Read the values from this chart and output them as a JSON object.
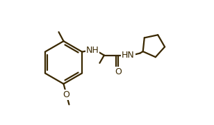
{
  "line_color": "#3a2800",
  "bg_color": "#ffffff",
  "line_width": 1.6,
  "font_size": 9.0,
  "fig_width": 3.08,
  "fig_height": 1.8,
  "dpi": 100,
  "xlim": [
    0.0,
    1.0
  ],
  "ylim": [
    0.05,
    0.95
  ]
}
